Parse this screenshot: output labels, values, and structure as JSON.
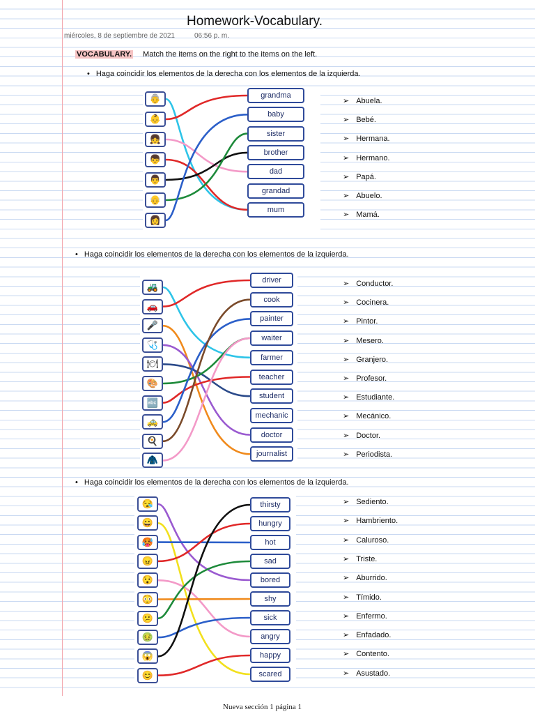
{
  "title": "Homework-Vocabulary.",
  "date": "miércoles, 8 de septiembre de 2021",
  "time": "06:56 p. m.",
  "intro": {
    "tag": "VOCABULARY.",
    "text": "Match the items on the right to the items on the left."
  },
  "sections": [
    {
      "instruction": "Haga coincidir los elementos de la derecha con los elementos de la izquierda.",
      "icons": [
        "👵",
        "👶",
        "👧",
        "👦",
        "👨",
        "👴",
        "👩"
      ],
      "words": [
        "grandma",
        "baby",
        "sister",
        "brother",
        "dad",
        "grandad",
        "mum"
      ],
      "translations": [
        "Abuela.",
        "Bebé.",
        "Hermana.",
        "Hermano.",
        "Papá.",
        "Abuelo.",
        "Mamá."
      ],
      "links": [
        {
          "from": 0,
          "to": 6,
          "color": "#2ec4e8"
        },
        {
          "from": 1,
          "to": 0,
          "color": "#e02828"
        },
        {
          "from": 2,
          "to": 4,
          "color": "#f39ac8"
        },
        {
          "from": 3,
          "to": 6,
          "color": "#e02828"
        },
        {
          "from": 4,
          "to": 3,
          "color": "#111111"
        },
        {
          "from": 5,
          "to": 2,
          "color": "#1d8a3a"
        },
        {
          "from": 6,
          "to": 1,
          "color": "#2b5fc9"
        }
      ]
    },
    {
      "instruction": "Haga coincidir los elementos de la derecha con los elementos de la izquierda.",
      "icons": [
        "🚜",
        "🚗",
        "🎤",
        "🩺",
        "🍽",
        "🎨",
        "🔤",
        "🚕",
        "🍳",
        "🧥"
      ],
      "words": [
        "driver",
        "cook",
        "painter",
        "waiter",
        "farmer",
        "teacher",
        "student",
        "mechanic",
        "doctor",
        "journalist"
      ],
      "translations": [
        "Conductor.",
        "Cocinera.",
        "Pintor.",
        "Mesero.",
        "Granjero.",
        "Profesor.",
        "Estudiante.",
        "Mecánico.",
        "Doctor.",
        "Periodista."
      ],
      "links": [
        {
          "from": 0,
          "to": 4,
          "color": "#2ec4e8"
        },
        {
          "from": 1,
          "to": 0,
          "color": "#e02828"
        },
        {
          "from": 2,
          "to": 9,
          "color": "#f08a1c"
        },
        {
          "from": 3,
          "to": 8,
          "color": "#9a5ad0"
        },
        {
          "from": 4,
          "to": 6,
          "color": "#2b4a8a"
        },
        {
          "from": 5,
          "to": 3,
          "color": "#1d8a3a"
        },
        {
          "from": 6,
          "to": 5,
          "color": "#e02828"
        },
        {
          "from": 7,
          "to": 2,
          "color": "#2b5fc9"
        },
        {
          "from": 8,
          "to": 1,
          "color": "#7a4a2a"
        },
        {
          "from": 9,
          "to": 3,
          "color": "#f39ac8"
        }
      ]
    },
    {
      "instruction": "Haga coincidir los elementos de la derecha con los elementos de la izquierda.",
      "icons": [
        "😪",
        "😀",
        "🥵",
        "😠",
        "😯",
        "😳",
        "😕",
        "🤢",
        "😱",
        "😊"
      ],
      "words": [
        "thirsty",
        "hungry",
        "hot",
        "sad",
        "bored",
        "shy",
        "sick",
        "angry",
        "happy",
        "scared"
      ],
      "translations": [
        "Sediento.",
        "Hambriento.",
        "Caluroso.",
        "Triste.",
        "Aburrido.",
        "Tímido.",
        "Enfermo.",
        "Enfadado.",
        "Contento.",
        "Asustado."
      ],
      "links": [
        {
          "from": 0,
          "to": 4,
          "color": "#9a5ad0"
        },
        {
          "from": 1,
          "to": 9,
          "color": "#f2e01e"
        },
        {
          "from": 2,
          "to": 2,
          "color": "#2b5fc9"
        },
        {
          "from": 3,
          "to": 1,
          "color": "#e02828"
        },
        {
          "from": 4,
          "to": 7,
          "color": "#f39ac8"
        },
        {
          "from": 5,
          "to": 5,
          "color": "#f08a1c"
        },
        {
          "from": 6,
          "to": 3,
          "color": "#1d8a3a"
        },
        {
          "from": 7,
          "to": 6,
          "color": "#2b5fc9"
        },
        {
          "from": 8,
          "to": 0,
          "color": "#111111"
        },
        {
          "from": 9,
          "to": 8,
          "color": "#e02828"
        }
      ]
    }
  ],
  "footer": "Nueva sección 1 página 1"
}
